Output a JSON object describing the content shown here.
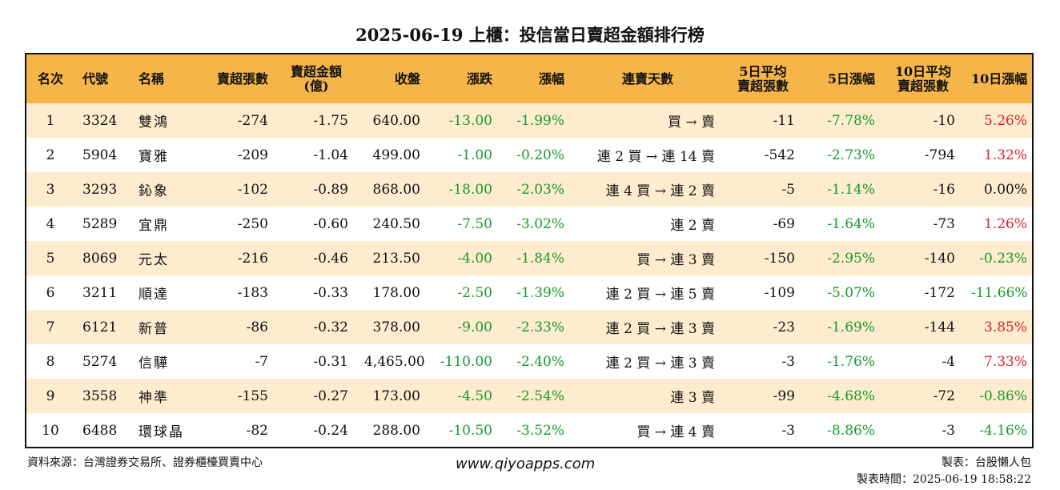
{
  "title": "2025-06-19 上櫃：投信當日賣超金額排行榜",
  "colors": {
    "header_bg": "#f6b548",
    "odd_row_bg": "#fdeccd",
    "up": "#e0202a",
    "down": "#179a2d"
  },
  "headers": [
    "名次",
    "代號",
    "名稱",
    "賣超張數",
    "賣超金額\n(億)",
    "收盤",
    "漲跌",
    "漲幅",
    "連賣天數",
    "5日平均\n賣超張數",
    "5日漲幅",
    "10日平均\n賣超張數",
    "10日漲幅"
  ],
  "rows": [
    [
      "1",
      "3324",
      "雙鴻",
      "-274",
      "-1.75",
      "640.00",
      "-13.00",
      "-1.99%",
      "買 → 賣",
      "-11",
      "-7.78%",
      "-10",
      "5.26%"
    ],
    [
      "2",
      "5904",
      "寶雅",
      "-209",
      "-1.04",
      "499.00",
      "-1.00",
      "-0.20%",
      "連 2 買 → 連 14 賣",
      "-542",
      "-2.73%",
      "-794",
      "1.32%"
    ],
    [
      "3",
      "3293",
      "鈊象",
      "-102",
      "-0.89",
      "868.00",
      "-18.00",
      "-2.03%",
      "連 4 買 → 連 2 賣",
      "-5",
      "-1.14%",
      "-16",
      "0.00%"
    ],
    [
      "4",
      "5289",
      "宜鼎",
      "-250",
      "-0.60",
      "240.50",
      "-7.50",
      "-3.02%",
      "連 2 賣",
      "-69",
      "-1.64%",
      "-73",
      "1.26%"
    ],
    [
      "5",
      "8069",
      "元太",
      "-216",
      "-0.46",
      "213.50",
      "-4.00",
      "-1.84%",
      "買 → 連 3 賣",
      "-150",
      "-2.95%",
      "-140",
      "-0.23%"
    ],
    [
      "6",
      "3211",
      "順達",
      "-183",
      "-0.33",
      "178.00",
      "-2.50",
      "-1.39%",
      "連 2 買 → 連 5 賣",
      "-109",
      "-5.07%",
      "-172",
      "-11.66%"
    ],
    [
      "7",
      "6121",
      "新普",
      "-86",
      "-0.32",
      "378.00",
      "-9.00",
      "-2.33%",
      "連 2 買 → 連 3 賣",
      "-23",
      "-1.69%",
      "-144",
      "3.85%"
    ],
    [
      "8",
      "5274",
      "信驊",
      "-7",
      "-0.31",
      "4,465.00",
      "-110.00",
      "-2.40%",
      "連 2 買 → 連 3 賣",
      "-3",
      "-1.76%",
      "-4",
      "7.33%"
    ],
    [
      "9",
      "3558",
      "神準",
      "-155",
      "-0.27",
      "173.00",
      "-4.50",
      "-2.54%",
      "連 3 賣",
      "-99",
      "-4.68%",
      "-72",
      "-0.86%"
    ],
    [
      "10",
      "6488",
      "環球晶",
      "-82",
      "-0.24",
      "288.00",
      "-10.50",
      "-3.52%",
      "買 → 連 4 賣",
      "-3",
      "-8.86%",
      "-3",
      "-4.16%"
    ]
  ],
  "footer": {
    "source": "資料來源：台灣證券交易所、證券櫃檯買賣中心",
    "website": "www.qiyoapps.com",
    "maker": "製表：台股懶人包",
    "made_time": "製表時間：2025-06-19 18:58:22"
  }
}
